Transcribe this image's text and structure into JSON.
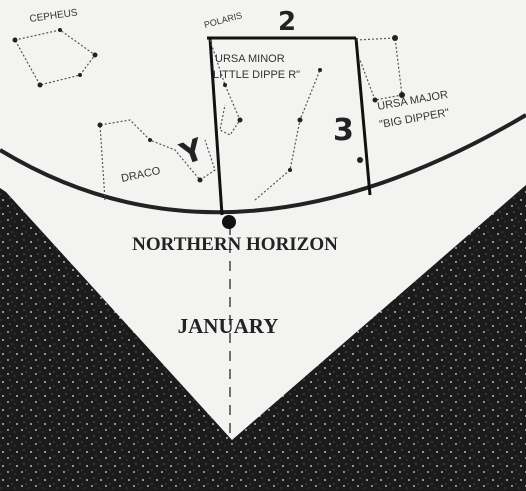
{
  "labels": {
    "cepheus": "CEPHEUS",
    "polaris": "POLARIS",
    "mark_2": "2",
    "ursa_minor": "URSA MINOR",
    "little_dipper": "LITTLE DIPPE R\"",
    "mark_3": "3",
    "ursa_major": "URSA MAJOR",
    "big_dipper": "\"BIG DIPPER\"",
    "mark_y": "Y",
    "draco": "DRACO",
    "horizon": "NORTHERN HORIZON",
    "month": "JANUARY"
  }
}
